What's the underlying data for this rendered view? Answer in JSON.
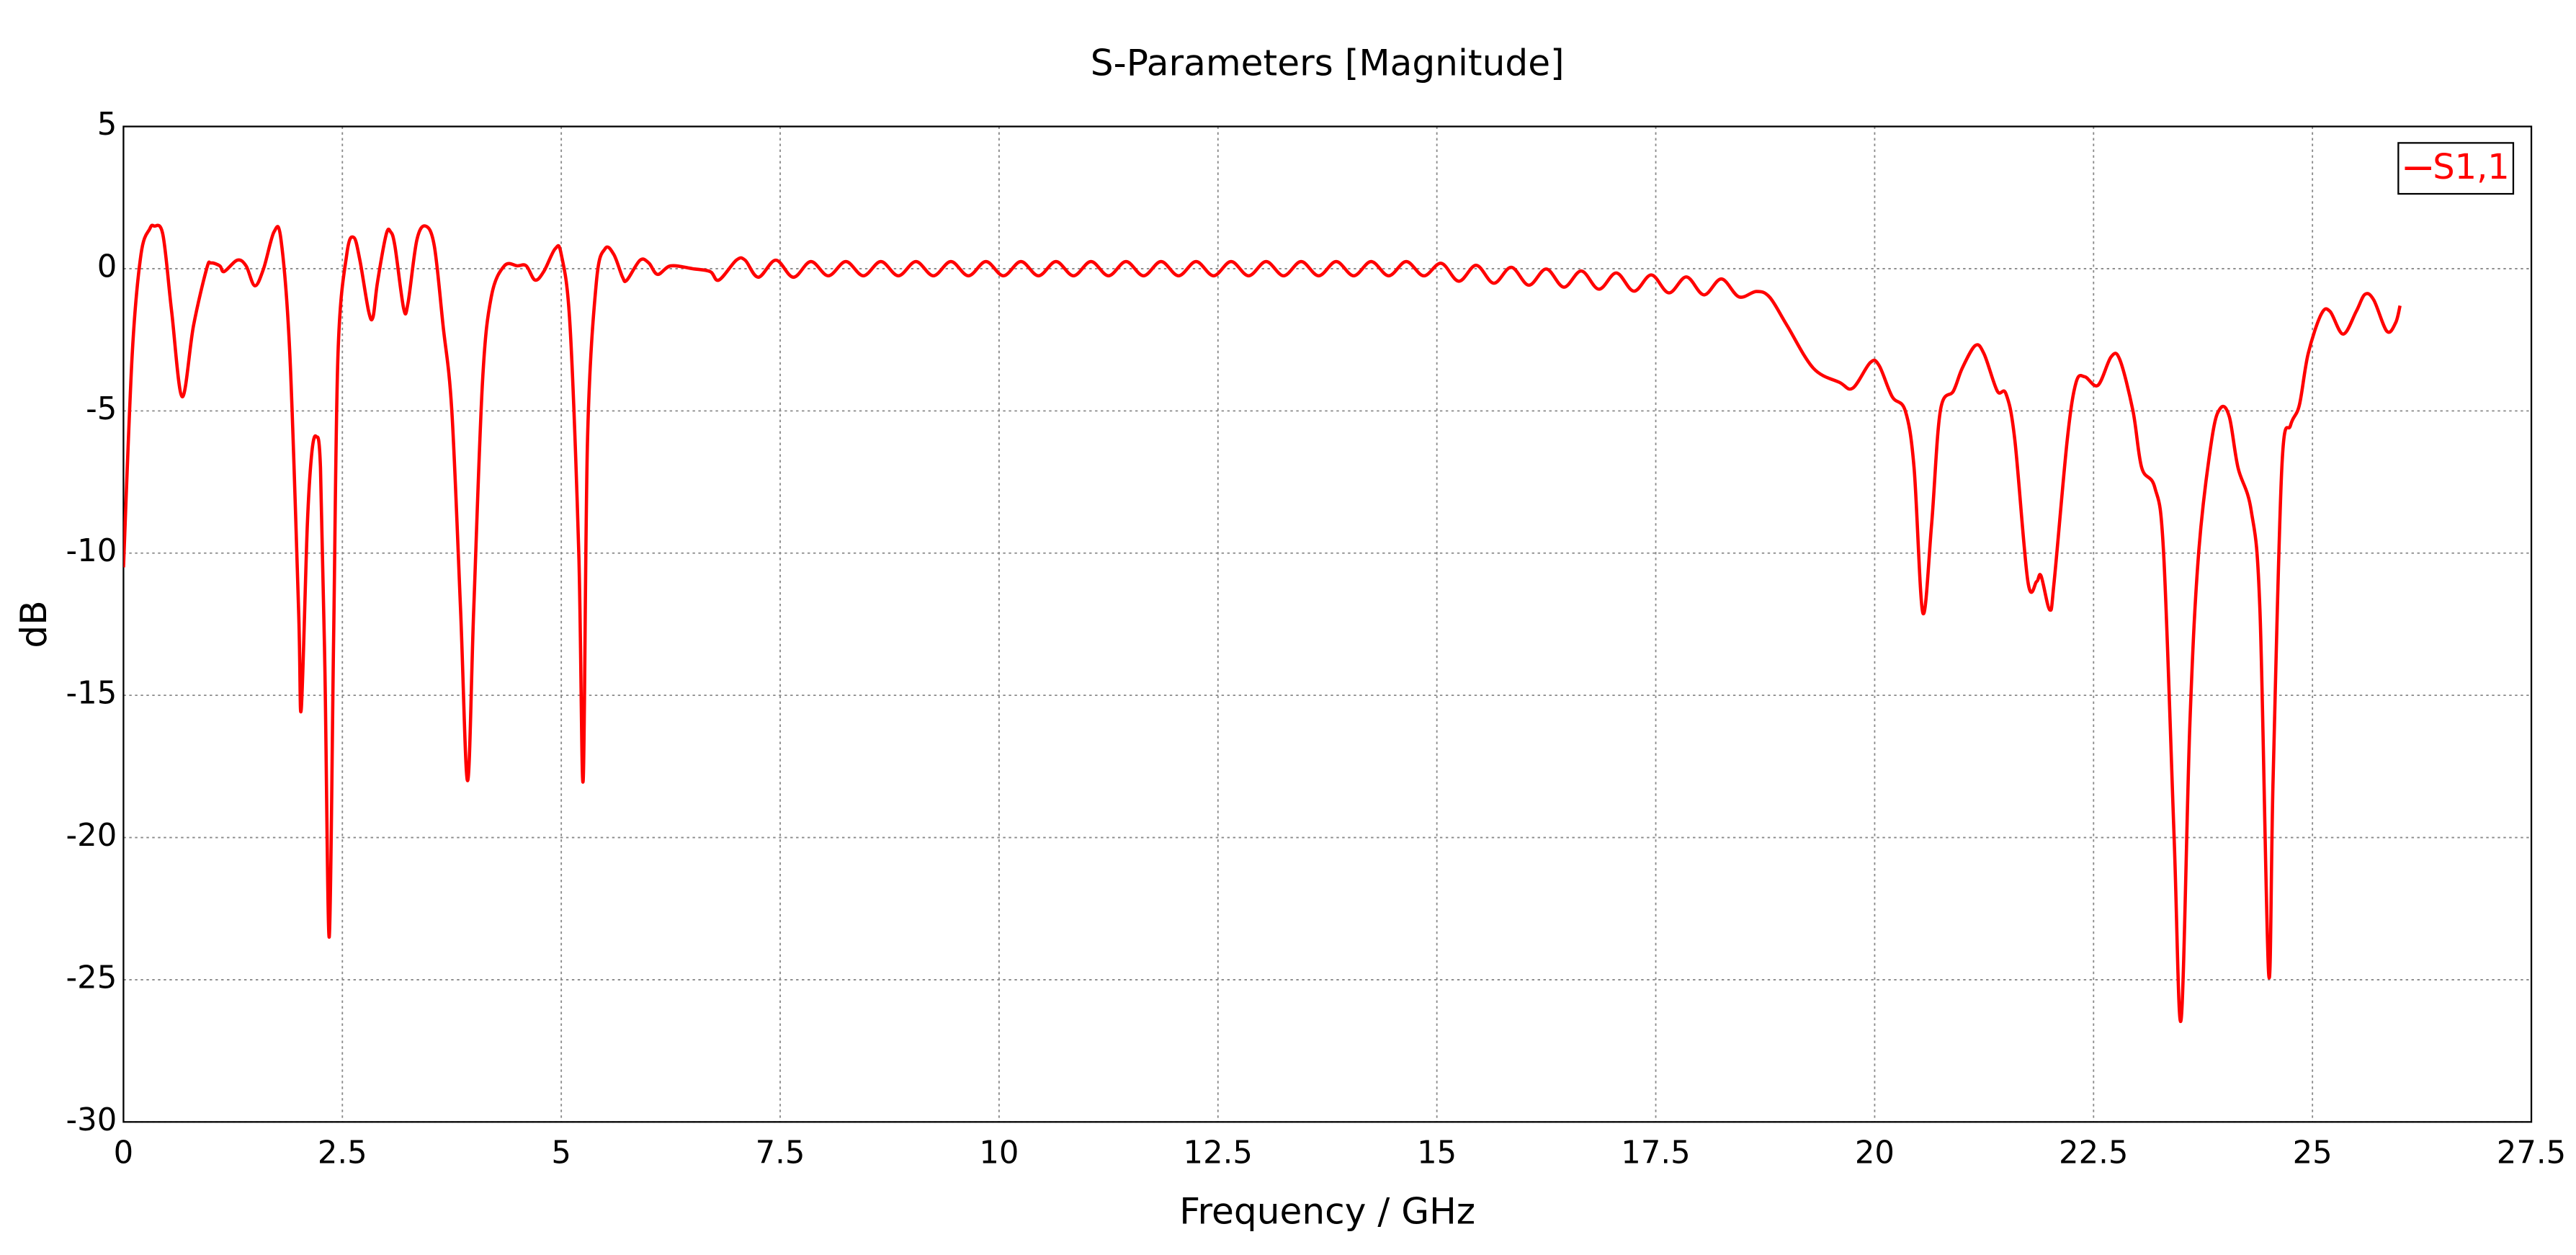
{
  "chart_data": {
    "type": "line",
    "title": "S-Parameters [Magnitude]",
    "x_label": "Frequency / GHz",
    "y_label": "dB",
    "xlim": [
      0,
      27.5
    ],
    "ylim": [
      -30,
      5
    ],
    "xticks": [
      0,
      2.5,
      5,
      7.5,
      10,
      12.5,
      15,
      17.5,
      20,
      22.5,
      25,
      27.5
    ],
    "yticks": [
      5,
      0,
      -5,
      -10,
      -15,
      -20,
      -25,
      -30
    ],
    "grid": true,
    "legend": "upper right",
    "x": [
      0,
      0.1,
      0.2,
      0.3,
      0.35,
      0.45,
      0.55,
      0.67,
      0.8,
      0.95,
      1.0,
      1.1,
      1.15,
      1.3,
      1.4,
      1.5,
      1.6,
      1.72,
      1.8,
      1.9,
      2.0,
      2.03,
      2.1,
      2.15,
      2.2,
      2.25,
      2.3,
      2.35,
      2.4,
      2.45,
      2.55,
      2.63,
      2.7,
      2.8,
      2.85,
      2.9,
      3.0,
      3.05,
      3.1,
      3.2,
      3.25,
      3.35,
      3.45,
      3.55,
      3.65,
      3.75,
      3.85,
      3.93,
      4.0,
      4.1,
      4.2,
      4.35,
      4.5,
      4.6,
      4.7,
      4.8,
      4.93,
      5.0,
      5.1,
      5.2,
      5.25,
      5.3,
      5.4,
      5.5,
      5.6,
      5.7,
      5.75,
      5.9,
      6.0,
      6.1,
      6.25,
      6.5,
      6.7,
      6.8,
      7.0,
      7.1,
      7.25,
      7.45,
      7.65,
      7.85,
      8.05,
      8.25,
      8.45,
      8.65,
      8.85,
      9.05,
      9.25,
      9.45,
      9.65,
      9.85,
      10.05,
      10.25,
      10.45,
      10.65,
      10.85,
      11.05,
      11.25,
      11.45,
      11.65,
      11.85,
      12.05,
      12.25,
      12.45,
      12.65,
      12.85,
      13.05,
      13.25,
      13.45,
      13.65,
      13.85,
      14.05,
      14.25,
      14.45,
      14.65,
      14.85,
      15.05,
      15.25,
      15.45,
      15.65,
      15.85,
      16.05,
      16.25,
      16.45,
      16.65,
      16.85,
      17.05,
      17.25,
      17.45,
      17.65,
      17.85,
      18.05,
      18.25,
      18.45,
      18.65,
      18.8,
      19.0,
      19.3,
      19.6,
      19.75,
      19.95,
      20.05,
      20.2,
      20.35,
      20.45,
      20.55,
      20.65,
      20.75,
      20.9,
      21.0,
      21.15,
      21.25,
      21.4,
      21.5,
      21.6,
      21.75,
      21.85,
      21.9,
      22.0,
      22.05,
      22.2,
      22.3,
      22.4,
      22.55,
      22.7,
      22.8,
      22.95,
      23.05,
      23.2,
      23.3,
      23.42,
      23.5,
      23.6,
      23.7,
      23.85,
      23.95,
      24.05,
      24.15,
      24.3,
      24.4,
      24.5,
      24.55,
      24.65,
      24.75,
      24.85,
      24.95,
      25.1,
      25.2,
      25.35,
      25.5,
      25.6,
      25.7,
      25.85,
      25.95,
      26.0
    ],
    "series": [
      {
        "name": "S1,1",
        "color": "#ff0000",
        "values": [
          -10.5,
          -3,
          0.5,
          1.4,
          1.5,
          1.2,
          -1.5,
          -4.5,
          -2,
          0,
          0.2,
          0.1,
          -0.1,
          0.3,
          0.1,
          -0.6,
          0,
          1.3,
          1.0,
          -3,
          -12,
          -15.5,
          -9,
          -6.5,
          -5.9,
          -7,
          -14,
          -23.5,
          -13,
          -3,
          0.5,
          1.1,
          0.3,
          -1.5,
          -1.7,
          -0.5,
          1.2,
          1.3,
          0.8,
          -1.4,
          -1.2,
          1.0,
          1.5,
          0.8,
          -2,
          -5,
          -12,
          -18,
          -12,
          -4,
          -1,
          0.1,
          0.1,
          0.1,
          -0.4,
          -0.1,
          0.7,
          0.5,
          -2,
          -10,
          -18,
          -6,
          -0.5,
          0.7,
          0.5,
          -0.3,
          -0.4,
          0.3,
          0.2,
          -0.2,
          0.1,
          0,
          -0.1,
          -0.4,
          0.3,
          0.3,
          -0.3,
          0.3,
          -0.3,
          0.25,
          -0.25,
          0.25,
          -0.25,
          0.25,
          -0.25,
          0.25,
          -0.25,
          0.25,
          -0.25,
          0.25,
          -0.25,
          0.25,
          -0.25,
          0.25,
          -0.25,
          0.25,
          -0.25,
          0.25,
          -0.25,
          0.25,
          -0.25,
          0.25,
          -0.25,
          0.25,
          -0.25,
          0.25,
          -0.25,
          0.25,
          -0.25,
          0.25,
          -0.25,
          0.25,
          -0.25,
          0.25,
          -0.25,
          0.19,
          -0.44,
          0.12,
          -0.51,
          0.05,
          -0.58,
          -0.01,
          -0.65,
          -0.08,
          -0.72,
          -0.15,
          -0.79,
          -0.22,
          -0.85,
          -0.29,
          -0.92,
          -0.36,
          -0.99,
          -0.8,
          -1.0,
          -2,
          -3.5,
          -4,
          -4.2,
          -3.3,
          -3.4,
          -4.5,
          -5,
          -7,
          -12.1,
          -9,
          -5,
          -4.3,
          -3.5,
          -2.7,
          -3,
          -4.3,
          -4.4,
          -6,
          -11,
          -11,
          -10.8,
          -12,
          -11,
          -6,
          -4,
          -3.8,
          -4.1,
          -3.1,
          -3.2,
          -5,
          -7,
          -7.7,
          -10,
          -20,
          -26.4,
          -16,
          -10,
          -6,
          -4.9,
          -5.2,
          -7,
          -8.5,
          -12,
          -24.8,
          -18,
          -7,
          -5.5,
          -4.8,
          -3,
          -1.6,
          -1.5,
          -2.3,
          -1.5,
          -0.9,
          -1.1,
          -2.2,
          -1.9,
          -1.3
        ]
      }
    ]
  }
}
